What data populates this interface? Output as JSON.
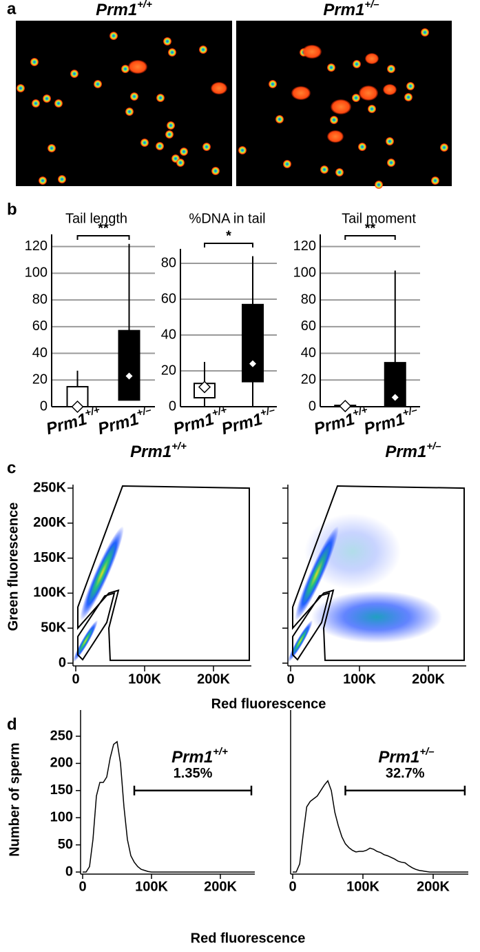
{
  "panel_labels": [
    "a",
    "b",
    "c",
    "d"
  ],
  "panel_a": {
    "titles": [
      "Prm1+/+",
      "Prm1+/–"
    ]
  },
  "chart_data": [
    {
      "type": "box",
      "title": "Tail length",
      "categories": [
        "Prm1+/+",
        "Prm1+/–"
      ],
      "boxes": [
        {
          "whisker_low": 0,
          "q1": 0,
          "q3": 15,
          "whisker_high": 27,
          "mean": 0,
          "color": "#ffffff"
        },
        {
          "whisker_low": 5,
          "q1": 5,
          "q3": 57,
          "whisker_high": 122,
          "mean": 23,
          "color": "#000000"
        }
      ],
      "ylim": [
        0,
        125
      ],
      "yticks": [
        0,
        20,
        40,
        60,
        80,
        100,
        120
      ],
      "grid": true,
      "significance": "**"
    },
    {
      "type": "box",
      "title": "%DNA in tail",
      "categories": [
        "Prm1+/+",
        "Prm1+/–"
      ],
      "boxes": [
        {
          "whisker_low": 0,
          "q1": 5,
          "q3": 13,
          "whisker_high": 25,
          "mean": 11,
          "color": "#ffffff"
        },
        {
          "whisker_low": 0,
          "q1": 14,
          "q3": 57,
          "whisker_high": 84,
          "mean": 24,
          "color": "#000000"
        }
      ],
      "ylim": [
        0,
        85
      ],
      "yticks": [
        0,
        20,
        40,
        60,
        80
      ],
      "grid": true,
      "significance": "*"
    },
    {
      "type": "box",
      "title": "Tail moment",
      "categories": [
        "Prm1+/+",
        "Prm1+/–"
      ],
      "boxes": [
        {
          "whisker_low": 0,
          "q1": 0,
          "q3": 1,
          "whisker_high": 2,
          "mean": 0.5,
          "color": "#ffffff"
        },
        {
          "whisker_low": 0,
          "q1": 0,
          "q3": 33,
          "whisker_high": 102,
          "mean": 7,
          "color": "#000000"
        }
      ],
      "ylim": [
        0,
        125
      ],
      "yticks": [
        0,
        20,
        40,
        60,
        80,
        100,
        120
      ],
      "grid": true,
      "significance": "**"
    },
    {
      "type": "scatter",
      "title": "Prm1+/+",
      "xlabel": "Red fluorescence",
      "ylabel": "Green fluorescence",
      "gates": [
        {
          "x": [
            3000,
            68000,
            252000,
            252000,
            50000,
            48000,
            62000,
            48000,
            3000
          ],
          "y": [
            80000,
            253000,
            250000,
            4000,
            4000,
            50000,
            104000,
            100000,
            50000
          ]
        },
        {
          "x": [
            3000,
            3000,
            42000,
            56000,
            45000,
            10000
          ],
          "y": [
            12000,
            38000,
            96000,
            100000,
            58000,
            5000
          ]
        }
      ],
      "xlim": [
        0,
        255000
      ],
      "ylim": [
        0,
        255000
      ],
      "xticks": [
        0,
        {
          "value": 100000,
          "label": "100K"
        },
        {
          "value": 200000,
          "label": "200K"
        }
      ],
      "yticks": [
        0,
        {
          "value": 50000,
          "label": "50K"
        },
        {
          "value": 100000,
          "label": "100K"
        },
        {
          "value": 150000,
          "label": "150K"
        },
        {
          "value": 200000,
          "label": "200K"
        },
        {
          "value": 250000,
          "label": "250K"
        }
      ]
    },
    {
      "type": "scatter",
      "title": "Prm1+/–",
      "gates": [
        {
          "x": [
            3000,
            68000,
            252000,
            252000,
            50000,
            48000,
            62000,
            48000,
            3000
          ],
          "y": [
            80000,
            253000,
            250000,
            4000,
            4000,
            50000,
            104000,
            100000,
            50000
          ]
        },
        {
          "x": [
            3000,
            3000,
            42000,
            56000,
            45000,
            10000
          ],
          "y": [
            12000,
            38000,
            96000,
            100000,
            58000,
            5000
          ]
        }
      ],
      "xlim": [
        0,
        255000
      ],
      "ylim": [
        0,
        255000
      ],
      "xticks": [
        0,
        {
          "value": 100000,
          "label": "100K"
        },
        {
          "value": 200000,
          "label": "200K"
        }
      ],
      "yticks": [
        0,
        50000,
        100000,
        150000,
        200000,
        250000
      ],
      "ytick_labels": false
    },
    {
      "type": "line",
      "title": "Prm1+/+",
      "xlabel": "Red fluorescence",
      "ylabel": "Number of sperm",
      "x": [
        0,
        5000,
        10000,
        15000,
        20000,
        25000,
        30000,
        35000,
        40000,
        45000,
        50000,
        55000,
        60000,
        65000,
        70000,
        75000,
        80000,
        85000,
        90000,
        95000,
        100000,
        150000,
        250000
      ],
      "values": [
        0,
        0,
        10,
        60,
        140,
        165,
        165,
        175,
        210,
        235,
        240,
        200,
        120,
        60,
        30,
        18,
        10,
        5,
        3,
        1,
        0,
        0,
        0
      ],
      "color": "#000000",
      "xlim": [
        0,
        250000
      ],
      "ylim": [
        0,
        250
      ],
      "xticks": [
        0,
        {
          "value": 100000,
          "label": "100K"
        },
        {
          "value": 200000,
          "label": "200K"
        }
      ],
      "yticks": [
        0,
        50,
        100,
        150,
        200,
        250
      ],
      "bracket": [
        75000,
        245000
      ],
      "bracket_y": 150,
      "bracket_label": "1.35%"
    },
    {
      "type": "line",
      "title": "Prm1+/–",
      "x": [
        0,
        5000,
        10000,
        15000,
        20000,
        25000,
        30000,
        35000,
        40000,
        45000,
        50000,
        55000,
        60000,
        65000,
        70000,
        75000,
        80000,
        85000,
        90000,
        95000,
        100000,
        105000,
        110000,
        115000,
        120000,
        125000,
        130000,
        135000,
        140000,
        145000,
        150000,
        155000,
        160000,
        165000,
        170000,
        175000,
        180000,
        185000,
        190000,
        195000,
        200000,
        250000
      ],
      "values": [
        0,
        0,
        15,
        70,
        120,
        130,
        135,
        140,
        150,
        160,
        168,
        150,
        110,
        85,
        65,
        52,
        45,
        40,
        37,
        38,
        38,
        40,
        44,
        42,
        38,
        36,
        32,
        30,
        27,
        24,
        20,
        18,
        17,
        12,
        8,
        5,
        3,
        2,
        1,
        0,
        0,
        0
      ],
      "color": "#000000",
      "xlim": [
        0,
        250000
      ],
      "ylim": [
        0,
        250
      ],
      "xticks": [
        0,
        {
          "value": 100000,
          "label": "100K"
        },
        {
          "value": 200000,
          "label": "200K"
        }
      ],
      "bracket": [
        75000,
        245000
      ],
      "bracket_y": 150,
      "bracket_label": "32.7%"
    }
  ]
}
